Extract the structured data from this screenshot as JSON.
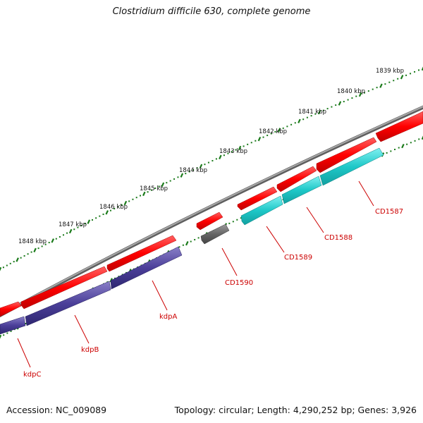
{
  "title": "Clostridium difficile 630, complete genome",
  "footer": {
    "accession": "Accession: NC_009089",
    "summary": "Topology: circular; Length: 4,290,252 bp; Genes: 3,926"
  },
  "colors": {
    "backbone": "#808080",
    "forward_gene": "#ff0000",
    "reverse_gene_kdp": "#4b3f99",
    "reverse_gene_cd": "#1ec8c8",
    "reverse_gene_cd1590": "#666666",
    "tick": "#1a7a1a",
    "label": "#cc0000"
  },
  "scale": {
    "ticks": [
      {
        "label": "1839 kbp"
      },
      {
        "label": "1840 kbp"
      },
      {
        "label": "1841 kbp"
      },
      {
        "label": "1842 kbp"
      },
      {
        "label": "1843 kbp"
      },
      {
        "label": "1844 kbp"
      },
      {
        "label": "1845 kbp"
      },
      {
        "label": "1846 kbp"
      },
      {
        "label": "1847 kbp"
      },
      {
        "label": "1848 kbp"
      }
    ]
  },
  "genes": {
    "labels": [
      {
        "name": "CD1587"
      },
      {
        "name": "CD1588"
      },
      {
        "name": "CD1589"
      },
      {
        "name": "CD1590"
      },
      {
        "name": "kdpA"
      },
      {
        "name": "kdpB"
      },
      {
        "name": "kdpC"
      }
    ]
  }
}
